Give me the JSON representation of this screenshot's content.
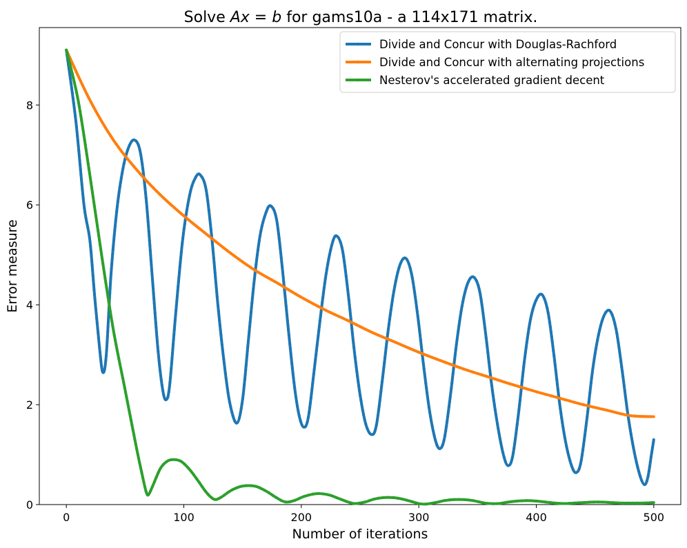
{
  "chart_data": {
    "type": "line",
    "title": "Solve $Ax=b$ for gams10a - a 114x171 matrix.",
    "title_parts": {
      "prefix": "Solve ",
      "math_a": "Ax",
      "math_eq": " = ",
      "math_b": "b",
      "suffix": " for gams10a - a 114x171 matrix."
    },
    "xlabel": "Number of iterations",
    "ylabel": "Error measure",
    "xlim": [
      -23,
      523
    ],
    "ylim": [
      0,
      9.55
    ],
    "xticks": [
      0,
      100,
      200,
      300,
      400,
      500
    ],
    "xtick_labels": [
      "0",
      "100",
      "200",
      "300",
      "400",
      "500"
    ],
    "yticks": [
      0,
      2,
      4,
      6,
      8
    ],
    "ytick_labels": [
      "0",
      "2",
      "4",
      "6",
      "8"
    ],
    "grid": false,
    "legend_position": "top-right",
    "series": [
      {
        "name": "Divide and Concur with Douglas-Rachford",
        "color": "#1f77b4",
        "points": [
          [
            0,
            9.1
          ],
          [
            8,
            7.7
          ],
          [
            15,
            6.0
          ],
          [
            20,
            5.3
          ],
          [
            24,
            4.2
          ],
          [
            28,
            3.2
          ],
          [
            31,
            2.65
          ],
          [
            34,
            3.0
          ],
          [
            38,
            4.6
          ],
          [
            43,
            5.9
          ],
          [
            48,
            6.7
          ],
          [
            53,
            7.15
          ],
          [
            58,
            7.3
          ],
          [
            63,
            7.05
          ],
          [
            68,
            6.1
          ],
          [
            73,
            4.6
          ],
          [
            78,
            3.1
          ],
          [
            82,
            2.3
          ],
          [
            85,
            2.1
          ],
          [
            88,
            2.4
          ],
          [
            93,
            3.8
          ],
          [
            99,
            5.3
          ],
          [
            105,
            6.2
          ],
          [
            110,
            6.55
          ],
          [
            114,
            6.6
          ],
          [
            119,
            6.3
          ],
          [
            124,
            5.3
          ],
          [
            129,
            4.0
          ],
          [
            134,
            2.9
          ],
          [
            139,
            2.05
          ],
          [
            145,
            1.63
          ],
          [
            150,
            2.1
          ],
          [
            155,
            3.3
          ],
          [
            160,
            4.5
          ],
          [
            165,
            5.4
          ],
          [
            170,
            5.85
          ],
          [
            174,
            5.98
          ],
          [
            179,
            5.7
          ],
          [
            184,
            4.7
          ],
          [
            189,
            3.5
          ],
          [
            194,
            2.4
          ],
          [
            198,
            1.8
          ],
          [
            202,
            1.55
          ],
          [
            206,
            1.75
          ],
          [
            211,
            2.7
          ],
          [
            216,
            3.7
          ],
          [
            221,
            4.6
          ],
          [
            226,
            5.2
          ],
          [
            230,
            5.38
          ],
          [
            235,
            5.1
          ],
          [
            240,
            4.2
          ],
          [
            245,
            3.1
          ],
          [
            250,
            2.2
          ],
          [
            255,
            1.6
          ],
          [
            260,
            1.4
          ],
          [
            264,
            1.6
          ],
          [
            269,
            2.5
          ],
          [
            274,
            3.5
          ],
          [
            279,
            4.3
          ],
          [
            284,
            4.8
          ],
          [
            289,
            4.93
          ],
          [
            294,
            4.6
          ],
          [
            299,
            3.8
          ],
          [
            304,
            2.8
          ],
          [
            309,
            1.9
          ],
          [
            314,
            1.3
          ],
          [
            318,
            1.12
          ],
          [
            322,
            1.35
          ],
          [
            327,
            2.2
          ],
          [
            332,
            3.2
          ],
          [
            337,
            4.0
          ],
          [
            342,
            4.45
          ],
          [
            347,
            4.55
          ],
          [
            352,
            4.25
          ],
          [
            357,
            3.4
          ],
          [
            362,
            2.4
          ],
          [
            367,
            1.6
          ],
          [
            372,
            1.0
          ],
          [
            376,
            0.78
          ],
          [
            380,
            0.98
          ],
          [
            385,
            1.85
          ],
          [
            390,
            2.9
          ],
          [
            395,
            3.7
          ],
          [
            400,
            4.1
          ],
          [
            405,
            4.2
          ],
          [
            410,
            3.85
          ],
          [
            415,
            3.0
          ],
          [
            420,
            2.0
          ],
          [
            425,
            1.25
          ],
          [
            430,
            0.78
          ],
          [
            434,
            0.64
          ],
          [
            438,
            0.85
          ],
          [
            443,
            1.7
          ],
          [
            448,
            2.7
          ],
          [
            453,
            3.4
          ],
          [
            458,
            3.8
          ],
          [
            463,
            3.87
          ],
          [
            468,
            3.5
          ],
          [
            473,
            2.7
          ],
          [
            478,
            1.8
          ],
          [
            483,
            1.1
          ],
          [
            488,
            0.6
          ],
          [
            492,
            0.4
          ],
          [
            495,
            0.55
          ],
          [
            498,
            1.0
          ],
          [
            500,
            1.3
          ]
        ]
      },
      {
        "name": "Divide and Concur with alternating projections",
        "color": "#ff7f0e",
        "points": [
          [
            0,
            9.1
          ],
          [
            20,
            8.1
          ],
          [
            40,
            7.3
          ],
          [
            60,
            6.7
          ],
          [
            80,
            6.2
          ],
          [
            100,
            5.78
          ],
          [
            120,
            5.4
          ],
          [
            140,
            5.03
          ],
          [
            160,
            4.7
          ],
          [
            180,
            4.43
          ],
          [
            200,
            4.15
          ],
          [
            220,
            3.9
          ],
          [
            240,
            3.68
          ],
          [
            260,
            3.45
          ],
          [
            280,
            3.25
          ],
          [
            300,
            3.05
          ],
          [
            320,
            2.87
          ],
          [
            340,
            2.7
          ],
          [
            360,
            2.55
          ],
          [
            380,
            2.4
          ],
          [
            400,
            2.26
          ],
          [
            420,
            2.13
          ],
          [
            440,
            2.0
          ],
          [
            460,
            1.89
          ],
          [
            480,
            1.78
          ],
          [
            500,
            1.76
          ]
        ]
      },
      {
        "name": "Nesterov's accelerated gradient decent",
        "color": "#2ca02c",
        "points": [
          [
            0,
            9.1
          ],
          [
            10,
            8.1
          ],
          [
            20,
            6.6
          ],
          [
            30,
            5.0
          ],
          [
            40,
            3.5
          ],
          [
            50,
            2.3
          ],
          [
            60,
            1.1
          ],
          [
            65,
            0.55
          ],
          [
            68,
            0.25
          ],
          [
            70,
            0.2
          ],
          [
            74,
            0.4
          ],
          [
            80,
            0.72
          ],
          [
            86,
            0.87
          ],
          [
            92,
            0.9
          ],
          [
            98,
            0.86
          ],
          [
            105,
            0.7
          ],
          [
            112,
            0.48
          ],
          [
            118,
            0.28
          ],
          [
            123,
            0.15
          ],
          [
            127,
            0.1
          ],
          [
            132,
            0.15
          ],
          [
            140,
            0.28
          ],
          [
            148,
            0.36
          ],
          [
            155,
            0.38
          ],
          [
            162,
            0.36
          ],
          [
            170,
            0.27
          ],
          [
            178,
            0.15
          ],
          [
            184,
            0.07
          ],
          [
            188,
            0.05
          ],
          [
            194,
            0.08
          ],
          [
            202,
            0.16
          ],
          [
            210,
            0.21
          ],
          [
            216,
            0.22
          ],
          [
            224,
            0.19
          ],
          [
            232,
            0.12
          ],
          [
            240,
            0.05
          ],
          [
            246,
            0.02
          ],
          [
            254,
            0.05
          ],
          [
            262,
            0.11
          ],
          [
            270,
            0.14
          ],
          [
            278,
            0.14
          ],
          [
            286,
            0.11
          ],
          [
            294,
            0.06
          ],
          [
            300,
            0.02
          ],
          [
            306,
            0.01
          ],
          [
            314,
            0.04
          ],
          [
            322,
            0.08
          ],
          [
            330,
            0.1
          ],
          [
            338,
            0.1
          ],
          [
            346,
            0.08
          ],
          [
            354,
            0.04
          ],
          [
            360,
            0.02
          ],
          [
            368,
            0.02
          ],
          [
            376,
            0.05
          ],
          [
            384,
            0.07
          ],
          [
            392,
            0.08
          ],
          [
            400,
            0.07
          ],
          [
            408,
            0.05
          ],
          [
            416,
            0.03
          ],
          [
            424,
            0.02
          ],
          [
            432,
            0.03
          ],
          [
            440,
            0.04
          ],
          [
            448,
            0.05
          ],
          [
            456,
            0.05
          ],
          [
            464,
            0.04
          ],
          [
            472,
            0.03
          ],
          [
            480,
            0.03
          ],
          [
            490,
            0.03
          ],
          [
            500,
            0.04
          ]
        ]
      }
    ]
  }
}
